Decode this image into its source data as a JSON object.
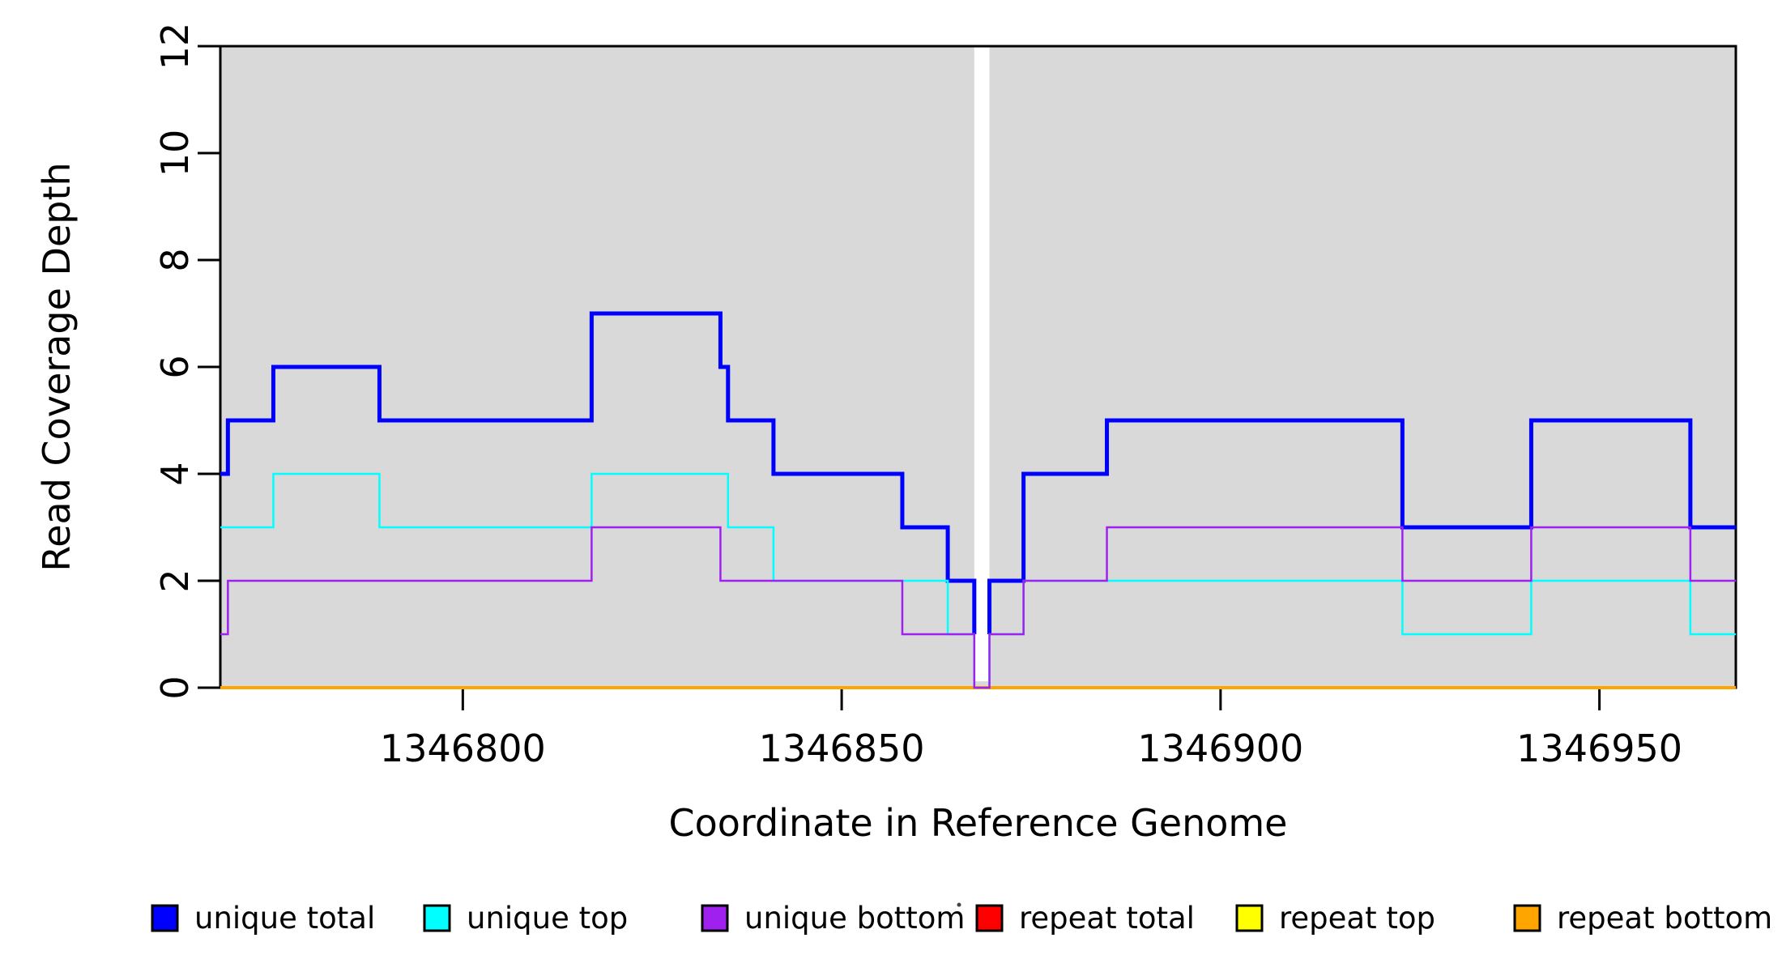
{
  "figure": {
    "background": "#FFFFFF",
    "plot_background": "#D9D9D9",
    "border_color": "#000000"
  },
  "chart_data": {
    "type": "line",
    "step": true,
    "title": "",
    "xlabel": "Coordinate in Reference Genome",
    "ylabel": "Read Coverage Depth",
    "xlim": [
      1346768,
      1346968
    ],
    "ylim": [
      0,
      12
    ],
    "xticks": [
      1346800,
      1346850,
      1346900,
      1346950
    ],
    "yticks": [
      0,
      2,
      4,
      6,
      8,
      10,
      12
    ],
    "grid": false,
    "legend_position": "bottom",
    "gap": {
      "from": 1346867.5,
      "to": 1346869.5,
      "color": "#FFFFFF"
    },
    "series": [
      {
        "name": "repeat total",
        "color": "#FF0000",
        "width": 2.5,
        "segments": [
          [
            [
              1346768,
              0
            ],
            [
              1346968,
              0
            ]
          ]
        ]
      },
      {
        "name": "repeat top",
        "color": "#FFFF00",
        "width": 2.5,
        "segments": [
          [
            [
              1346768,
              0
            ],
            [
              1346968,
              0
            ]
          ]
        ]
      },
      {
        "name": "repeat bottom",
        "color": "#FFA500",
        "width": 4,
        "segments": [
          [
            [
              1346768,
              0
            ],
            [
              1346968,
              0
            ]
          ]
        ]
      },
      {
        "name": "unique total",
        "color": "#0000FF",
        "width": 5,
        "segments": [
          [
            [
              1346768,
              4
            ],
            [
              1346769,
              4
            ],
            [
              1346769,
              5
            ],
            [
              1346775,
              5
            ],
            [
              1346775,
              6
            ],
            [
              1346789,
              6
            ],
            [
              1346789,
              5
            ],
            [
              1346817,
              5
            ],
            [
              1346817,
              7
            ],
            [
              1346834,
              7
            ],
            [
              1346834,
              6
            ],
            [
              1346835,
              6
            ],
            [
              1346835,
              5
            ],
            [
              1346841,
              5
            ],
            [
              1346841,
              4
            ],
            [
              1346858,
              4
            ],
            [
              1346858,
              3
            ],
            [
              1346864,
              3
            ],
            [
              1346864,
              2
            ],
            [
              1346867.5,
              2
            ],
            [
              1346867.5,
              1
            ]
          ],
          [
            [
              1346869.5,
              1
            ],
            [
              1346869.5,
              2
            ],
            [
              1346874,
              2
            ],
            [
              1346874,
              4
            ],
            [
              1346885,
              4
            ],
            [
              1346885,
              5
            ],
            [
              1346924,
              5
            ],
            [
              1346924,
              3
            ],
            [
              1346941,
              3
            ],
            [
              1346941,
              5
            ],
            [
              1346962,
              5
            ],
            [
              1346962,
              3
            ],
            [
              1346968,
              3
            ]
          ]
        ]
      },
      {
        "name": "unique top",
        "color": "#00FFFF",
        "width": 2.5,
        "segments": [
          [
            [
              1346768,
              3
            ],
            [
              1346775,
              3
            ],
            [
              1346775,
              4
            ],
            [
              1346789,
              4
            ],
            [
              1346789,
              3
            ],
            [
              1346817,
              3
            ],
            [
              1346817,
              4
            ],
            [
              1346835,
              4
            ],
            [
              1346835,
              3
            ],
            [
              1346841,
              3
            ],
            [
              1346841,
              2
            ],
            [
              1346864,
              2
            ],
            [
              1346864,
              1
            ],
            [
              1346867.5,
              1
            ],
            [
              1346867.5,
              0
            ]
          ],
          [
            [
              1346869.5,
              0
            ],
            [
              1346869.5,
              1
            ],
            [
              1346874,
              1
            ],
            [
              1346874,
              2
            ],
            [
              1346924,
              2
            ],
            [
              1346924,
              1
            ],
            [
              1346941,
              1
            ],
            [
              1346941,
              2
            ],
            [
              1346962,
              2
            ],
            [
              1346962,
              1
            ],
            [
              1346968,
              1
            ]
          ]
        ]
      },
      {
        "name": "unique bottom",
        "color": "#A020F0",
        "width": 2.5,
        "segments": [
          [
            [
              1346768,
              1
            ],
            [
              1346769,
              1
            ],
            [
              1346769,
              2
            ],
            [
              1346817,
              2
            ],
            [
              1346817,
              3
            ],
            [
              1346834,
              3
            ],
            [
              1346834,
              2
            ],
            [
              1346858,
              2
            ],
            [
              1346858,
              1
            ],
            [
              1346867.5,
              1
            ],
            [
              1346867.5,
              0
            ],
            [
              1346869.5,
              0
            ],
            [
              1346869.5,
              1
            ],
            [
              1346874,
              1
            ],
            [
              1346874,
              2
            ],
            [
              1346885,
              2
            ],
            [
              1346885,
              3
            ],
            [
              1346924,
              3
            ],
            [
              1346924,
              2
            ],
            [
              1346941,
              2
            ],
            [
              1346941,
              3
            ],
            [
              1346962,
              3
            ],
            [
              1346962,
              2
            ],
            [
              1346968,
              2
            ]
          ]
        ]
      }
    ],
    "legend": [
      {
        "label": "unique total",
        "color": "#0000FF"
      },
      {
        "label": "unique top",
        "color": "#00FFFF"
      },
      {
        "label": "unique bottom",
        "color": "#A020F0"
      },
      {
        "label": "repeat total",
        "color": "#FF0000"
      },
      {
        "label": "repeat top",
        "color": "#FFFF00"
      },
      {
        "label": "repeat bottom",
        "color": "#FFA500"
      }
    ]
  }
}
